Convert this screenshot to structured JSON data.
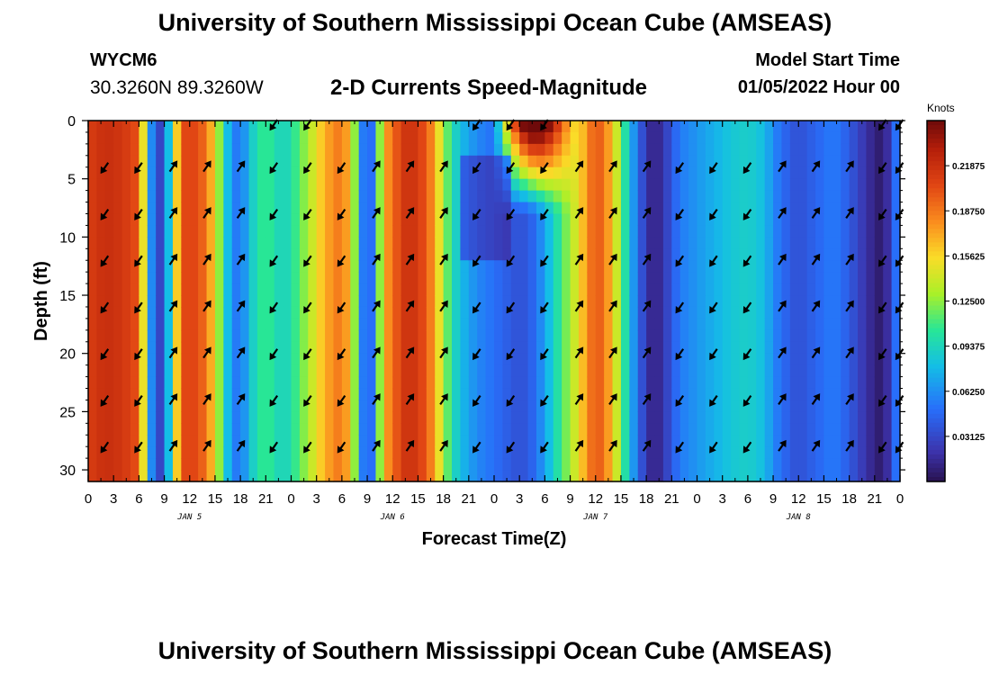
{
  "header": {
    "title": "University of Southern Mississippi Ocean Cube (AMSEAS)",
    "station": "WYCM6",
    "coordinates": "30.3260N  89.3260W",
    "subtitle": "2-D Currents Speed-Magnitude",
    "model_start_label": "Model Start Time",
    "model_start_value": "01/05/2022 Hour 00"
  },
  "footer": {
    "title": "University of Southern Mississippi Ocean Cube (AMSEAS)"
  },
  "chart_data": {
    "type": "heatmap",
    "title": "2-D Currents Speed-Magnitude",
    "xlabel": "Forecast Time(Z)",
    "ylabel": "Depth (ft)",
    "x_ticks": [
      "0",
      "3",
      "6",
      "9",
      "12",
      "15",
      "18",
      "21",
      "0",
      "3",
      "6",
      "9",
      "12",
      "15",
      "18",
      "21",
      "0",
      "3",
      "6",
      "9",
      "12",
      "15",
      "18",
      "21",
      "0",
      "3",
      "6",
      "9",
      "12",
      "15",
      "18",
      "21",
      "0"
    ],
    "x_range_hours": [
      0,
      96
    ],
    "day_labels": [
      {
        "hour": 12,
        "label": "JAN 5"
      },
      {
        "hour": 36,
        "label": "JAN 6"
      },
      {
        "hour": 60,
        "label": "JAN 7"
      },
      {
        "hour": 84,
        "label": "JAN 8"
      }
    ],
    "y_ticks": [
      "0",
      "5",
      "10",
      "15",
      "20",
      "25",
      "30"
    ],
    "y_range_ft": [
      0,
      31
    ],
    "colorbar": {
      "unit": "Knots",
      "min": 0.0,
      "max": 0.25,
      "ticks": [
        "0.21875",
        "0.18750",
        "0.15625",
        "0.12500",
        "0.09375",
        "0.06250",
        "0.03125"
      ],
      "tick_values": [
        0.21875,
        0.1875,
        0.15625,
        0.125,
        0.09375,
        0.0625,
        0.03125
      ]
    },
    "speed_profile_hours": [
      0,
      2,
      4,
      6,
      7,
      8,
      9,
      10,
      11,
      12,
      13,
      14,
      15,
      16,
      17,
      18,
      19,
      20,
      21,
      22,
      23,
      24,
      26,
      28,
      30,
      31,
      32,
      33,
      34,
      35,
      36,
      37,
      38,
      39,
      40,
      41,
      42,
      43,
      44,
      45,
      46,
      47,
      48,
      49,
      50,
      51,
      52,
      53,
      54,
      55,
      56,
      57,
      58,
      59,
      60,
      61,
      62,
      63,
      64,
      65,
      66,
      67,
      68,
      69,
      70,
      71,
      72,
      73,
      74,
      76,
      78,
      80,
      81,
      82,
      83,
      84,
      85,
      86,
      87,
      88,
      89,
      90,
      91,
      92,
      93,
      94,
      95,
      96
    ],
    "speed_profile_knots": [
      0.21,
      0.22,
      0.215,
      0.2,
      0.1,
      0.02,
      0.04,
      0.12,
      0.2,
      0.21,
      0.2,
      0.19,
      0.15,
      0.1,
      0.06,
      0.05,
      0.08,
      0.1,
      0.11,
      0.1,
      0.09,
      0.1,
      0.13,
      0.17,
      0.19,
      0.16,
      0.09,
      0.02,
      0.08,
      0.17,
      0.19,
      0.21,
      0.22,
      0.21,
      0.2,
      0.17,
      0.13,
      0.1,
      0.08,
      0.07,
      0.06,
      0.055,
      0.05,
      0.045,
      0.04,
      0.035,
      0.04,
      0.05,
      0.07,
      0.09,
      0.11,
      0.13,
      0.15,
      0.18,
      0.2,
      0.19,
      0.16,
      0.12,
      0.08,
      0.05,
      0.02,
      0.01,
      0.02,
      0.04,
      0.055,
      0.06,
      0.065,
      0.07,
      0.075,
      0.085,
      0.09,
      0.08,
      0.06,
      0.05,
      0.04,
      0.035,
      0.04,
      0.045,
      0.05,
      0.055,
      0.05,
      0.04,
      0.03,
      0.02,
      0.01,
      0.005,
      0.03,
      0.07
    ],
    "surface_anomaly": {
      "hours": [
        48,
        58
      ],
      "depths_ft": [
        0,
        8
      ],
      "description": "strong near-surface core up to ~0.23 knots"
    },
    "arrows": {
      "hours": [
        2,
        6,
        10,
        14,
        18,
        22,
        26,
        30,
        34,
        38,
        42,
        46,
        50,
        54,
        58,
        62,
        66,
        70,
        74,
        78,
        82,
        86,
        90,
        94,
        96
      ],
      "depths_ft": [
        4,
        8,
        12,
        16,
        20,
        24,
        28
      ],
      "surface_depth_ft": 0,
      "direction_profile": [
        {
          "from_hour": 0,
          "to_hour": 8,
          "dir": "SW"
        },
        {
          "from_hour": 8,
          "to_hour": 20,
          "dir": "NE"
        },
        {
          "from_hour": 20,
          "to_hour": 32,
          "dir": "SW"
        },
        {
          "from_hour": 32,
          "to_hour": 44,
          "dir": "NE"
        },
        {
          "from_hour": 44,
          "to_hour": 56,
          "dir": "SW"
        },
        {
          "from_hour": 56,
          "to_hour": 70,
          "dir": "NE"
        },
        {
          "from_hour": 70,
          "to_hour": 80,
          "dir": "SW"
        },
        {
          "from_hour": 80,
          "to_hour": 93,
          "dir": "NE"
        },
        {
          "from_hour": 93,
          "to_hour": 97,
          "dir": "SW"
        }
      ]
    }
  }
}
